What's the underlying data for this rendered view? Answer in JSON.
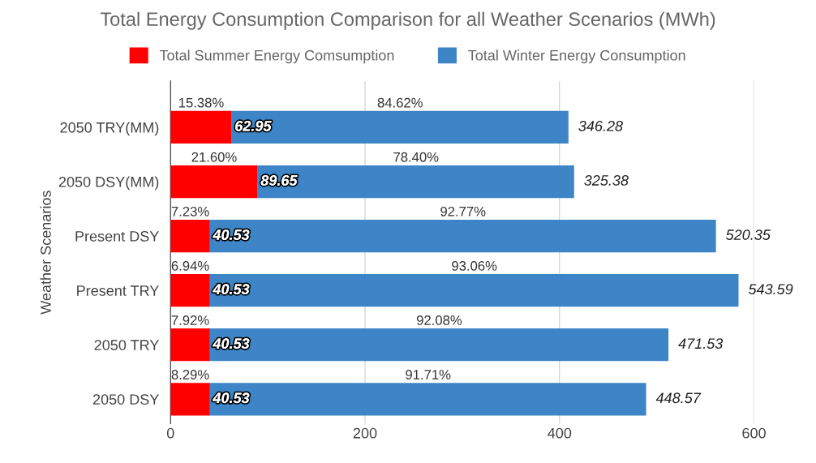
{
  "chart_data": {
    "type": "bar",
    "orientation": "horizontal",
    "stacked": true,
    "title": "Total Energy Consumption Comparison for all Weather Scenarios (MWh)",
    "ylabel": "Weather Scenarios",
    "categories": [
      "2050 TRY(MM)",
      "2050 DSY(MM)",
      "Present DSY",
      "Present TRY",
      "2050 TRY",
      "2050 DSY"
    ],
    "series": [
      {
        "name": "Total Summer Energy Comsumption",
        "color": "#ff0000",
        "values": [
          62.95,
          89.65,
          40.53,
          40.53,
          40.53,
          40.53
        ]
      },
      {
        "name": "Total Winter Energy Consumption",
        "color": "#3d85c6",
        "values": [
          346.28,
          325.38,
          520.35,
          543.59,
          471.53,
          448.57
        ]
      }
    ],
    "xlim": [
      0,
      600
    ],
    "xticks": [
      0,
      200,
      400,
      600
    ],
    "grid": "x",
    "legend": "top",
    "data_labels": true,
    "annotations": [
      "15.38%",
      "84.62%",
      "21.60%",
      "78.40%",
      "7.23%",
      "92.77%",
      "6.94%",
      "93.06%",
      "7.92%",
      "92.08%",
      "8.29%",
      "91.71%"
    ]
  }
}
